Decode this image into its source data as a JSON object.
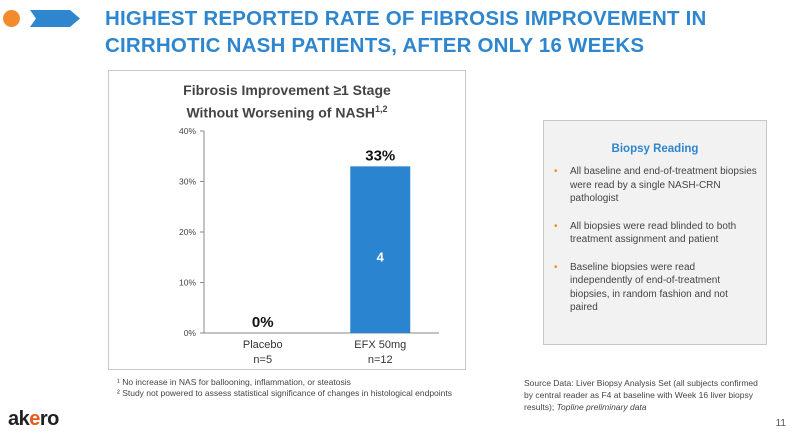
{
  "colors": {
    "orange": "#F28A2E",
    "blue": "#2E86CE",
    "bar": "#2B84D0",
    "title": "#2E86CE"
  },
  "header": {
    "title_line1": "HIGHEST REPORTED RATE OF FIBROSIS IMPROVEMENT IN",
    "title_line2": "CIRRHOTIC NASH PATIENTS, AFTER ONLY 16 WEEKS"
  },
  "chart_data": {
    "type": "bar",
    "title_line1": "Fibrosis Improvement ≥1 Stage",
    "title_line2": "Without Worsening of NASH",
    "title_sup": "1,2",
    "categories": [
      "Placebo",
      "EFX 50mg"
    ],
    "sublabels": [
      "n=5",
      "n=12"
    ],
    "values": [
      0,
      33
    ],
    "value_labels": [
      "0%",
      "33%"
    ],
    "inner_labels": [
      "",
      "4"
    ],
    "ylim": [
      0,
      40
    ],
    "yticks": [
      0,
      10,
      20,
      30,
      40
    ],
    "ytick_labels": [
      "0%",
      "10%",
      "20%",
      "30%",
      "40%"
    ],
    "grid": false
  },
  "panel": {
    "title": "Biopsy Reading",
    "bullet_glyph": "•",
    "items": [
      "All baseline and end-of-treatment biopsies were read by a single NASH-CRN pathologist",
      "All biopsies were read blinded to both treatment assignment and patient",
      "Baseline biopsies were read independently of end-of-treatment biopsies, in random fashion and not paired"
    ]
  },
  "footnotes": {
    "note1": "¹ No increase in NAS for ballooning, inflammation, or steatosis",
    "note2": "² Study not powered to assess statistical significance of changes in histological endpoints"
  },
  "source": {
    "text": "Source Data: Liver Biopsy Analysis Set (all subjects confirmed by central reader as F4 at baseline with Week 16 liver biopsy results); ",
    "italic": "Topline preliminary data"
  },
  "logo": {
    "a": "ak",
    "x": "e",
    "b": "ro"
  },
  "page_number": "11"
}
